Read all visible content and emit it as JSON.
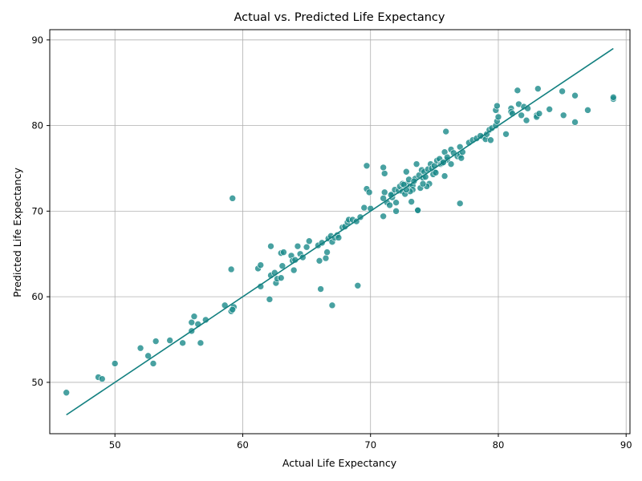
{
  "chart_data": {
    "type": "scatter",
    "title": "Actual vs. Predicted Life Expectancy",
    "xlabel": "Actual Life Expectancy",
    "ylabel": "Predicted Life Expectancy",
    "xlim": [
      44.9,
      90.3
    ],
    "ylim": [
      44.0,
      91.2
    ],
    "xticks": [
      50,
      60,
      70,
      80,
      90
    ],
    "yticks": [
      50,
      60,
      70,
      80,
      90
    ],
    "grid": true,
    "colors": {
      "points": "#1a8a8a",
      "fit_line": "#138080"
    },
    "fit_line": {
      "x": [
        46.2,
        89.0
      ],
      "y": [
        46.2,
        89.0
      ]
    },
    "series": [
      {
        "x": [
          46.2,
          48.7,
          49.0,
          50.0,
          52.0,
          52.6,
          53.0,
          53.2,
          54.3,
          55.3,
          56.0,
          56.0,
          56.2,
          56.5,
          56.7,
          57.1,
          58.6,
          59.1,
          59.3,
          59.2,
          59.1,
          59.2,
          61.2,
          61.4,
          61.4,
          62.1,
          62.2,
          62.2,
          62.5,
          62.6,
          62.7,
          63.0,
          63.0,
          63.1,
          63.2,
          63.8,
          63.9,
          64.0,
          64.1,
          64.3,
          64.5,
          64.7,
          65.0,
          65.2,
          65.9,
          66.0,
          66.2,
          66.5,
          66.6,
          66.7,
          66.9,
          67.0,
          67.2,
          67.4,
          67.5,
          67.8,
          68.0,
          68.2,
          68.3,
          68.6,
          68.9,
          69.2,
          69.5,
          69.7,
          69.7,
          69.9,
          66.1,
          67.0,
          69.0,
          71.0,
          71.1,
          71.0,
          71.1,
          71.3,
          71.5,
          71.7,
          71.7,
          71.9,
          72.0,
          72.2,
          72.3,
          72.5,
          72.5,
          72.7,
          72.8,
          72.9,
          73.0,
          73.1,
          73.2,
          73.3,
          73.3,
          73.5,
          73.6,
          73.7,
          73.8,
          74.0,
          74.1,
          74.2,
          74.3,
          74.5,
          74.6,
          74.7,
          74.8,
          75.0,
          75.0,
          75.2,
          75.4,
          75.5,
          75.6,
          75.8,
          76.0,
          76.3,
          76.5,
          76.8,
          77.0,
          77.0,
          77.2,
          77.7,
          78.0,
          78.3,
          78.8,
          79.0,
          79.1,
          79.3,
          79.5,
          79.8,
          79.9,
          80.0,
          79.8,
          79.9,
          81.0,
          81.0,
          81.1,
          81.5,
          81.6,
          81.8,
          82.0,
          82.3,
          83.0,
          83.0,
          83.1,
          84.0,
          85.0,
          85.1,
          86.0,
          86.0,
          87.0,
          89.0,
          89.0,
          75.9,
          77.0,
          73.7,
          71.0,
          72.0,
          73.1,
          74.4,
          75.8,
          76.3,
          72.6,
          73.9,
          74.9,
          70.0,
          71.6,
          72.8,
          73.4,
          74.1,
          75.1,
          75.7,
          76.0,
          77.1,
          78.6,
          79.4,
          80.6,
          82.2,
          83.2
        ],
        "y": [
          48.8,
          50.6,
          50.4,
          52.2,
          54.0,
          53.1,
          52.2,
          54.8,
          54.9,
          54.6,
          56.0,
          57.0,
          57.7,
          56.8,
          54.6,
          57.3,
          59.0,
          58.3,
          58.8,
          58.5,
          63.2,
          71.5,
          63.3,
          63.7,
          61.2,
          59.7,
          65.9,
          62.5,
          62.8,
          61.6,
          62.1,
          62.2,
          65.1,
          63.6,
          65.2,
          64.8,
          64.2,
          63.1,
          64.3,
          65.9,
          65.0,
          64.6,
          65.8,
          66.5,
          66.0,
          64.2,
          66.3,
          64.5,
          65.2,
          66.8,
          67.1,
          66.4,
          66.9,
          67.2,
          66.9,
          68.1,
          68.2,
          68.7,
          69.0,
          69.0,
          68.8,
          69.3,
          70.4,
          72.6,
          75.3,
          72.2,
          60.9,
          59.0,
          61.3,
          69.4,
          74.4,
          75.1,
          72.2,
          71.0,
          70.7,
          71.6,
          72.0,
          72.5,
          70.0,
          72.4,
          72.9,
          73.2,
          72.3,
          72.0,
          74.6,
          73.2,
          73.7,
          72.9,
          71.1,
          73.0,
          72.5,
          73.8,
          75.5,
          70.1,
          74.2,
          74.8,
          73.9,
          74.6,
          74.0,
          74.9,
          73.2,
          75.5,
          75.0,
          74.6,
          75.3,
          75.9,
          76.1,
          75.5,
          75.6,
          76.9,
          76.0,
          77.2,
          76.8,
          76.4,
          76.5,
          77.5,
          76.9,
          78.0,
          78.3,
          78.5,
          78.7,
          78.4,
          79.0,
          79.5,
          79.7,
          80.0,
          80.5,
          81.0,
          81.8,
          82.3,
          82.0,
          81.6,
          81.4,
          84.1,
          82.5,
          81.2,
          82.2,
          82.0,
          81.2,
          81.0,
          84.3,
          81.9,
          84.0,
          81.2,
          83.5,
          80.4,
          81.8,
          83.1,
          83.3,
          79.3,
          70.9,
          70.1,
          71.5,
          71.0,
          72.3,
          72.9,
          74.1,
          75.5,
          73.1,
          72.7,
          74.3,
          70.3,
          71.9,
          72.5,
          73.5,
          73.2,
          74.5,
          75.7,
          76.3,
          76.2,
          78.8,
          78.3,
          79.0,
          80.6,
          81.4
        ]
      }
    ]
  }
}
